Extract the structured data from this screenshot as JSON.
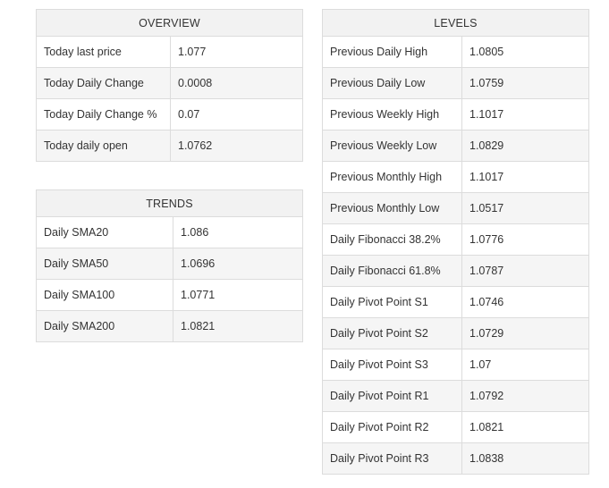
{
  "overview": {
    "title": "OVERVIEW",
    "rows": [
      {
        "label": "Today last price",
        "value": "1.077"
      },
      {
        "label": "Today Daily Change",
        "value": "0.0008"
      },
      {
        "label": "Today Daily Change %",
        "value": "0.07"
      },
      {
        "label": "Today daily open",
        "value": "1.0762"
      }
    ]
  },
  "trends": {
    "title": "TRENDS",
    "rows": [
      {
        "label": "Daily SMA20",
        "value": "1.086"
      },
      {
        "label": "Daily SMA50",
        "value": "1.0696"
      },
      {
        "label": "Daily SMA100",
        "value": "1.0771"
      },
      {
        "label": "Daily SMA200",
        "value": "1.0821"
      }
    ]
  },
  "levels": {
    "title": "LEVELS",
    "rows": [
      {
        "label": "Previous Daily High",
        "value": "1.0805"
      },
      {
        "label": "Previous Daily Low",
        "value": "1.0759"
      },
      {
        "label": "Previous Weekly High",
        "value": "1.1017"
      },
      {
        "label": "Previous Weekly Low",
        "value": "1.0829"
      },
      {
        "label": "Previous Monthly High",
        "value": "1.1017"
      },
      {
        "label": "Previous Monthly Low",
        "value": "1.0517"
      },
      {
        "label": "Daily Fibonacci 38.2%",
        "value": "1.0776"
      },
      {
        "label": "Daily Fibonacci 61.8%",
        "value": "1.0787"
      },
      {
        "label": "Daily Pivot Point S1",
        "value": "1.0746"
      },
      {
        "label": "Daily Pivot Point S2",
        "value": "1.0729"
      },
      {
        "label": "Daily Pivot Point S3",
        "value": "1.07"
      },
      {
        "label": "Daily Pivot Point R1",
        "value": "1.0792"
      },
      {
        "label": "Daily Pivot Point R2",
        "value": "1.0821"
      },
      {
        "label": "Daily Pivot Point R3",
        "value": "1.0838"
      }
    ]
  }
}
